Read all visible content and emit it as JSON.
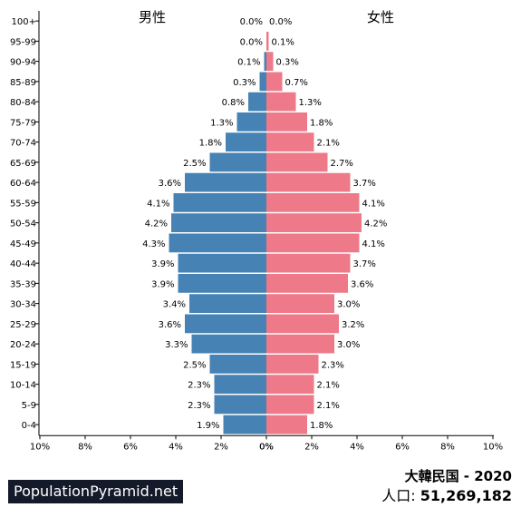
{
  "chart_data": {
    "type": "bar",
    "orientation": "horizontal-population-pyramid",
    "title": "大韓民国 - 2020",
    "sex_labels": {
      "male": "男性",
      "female": "女性"
    },
    "age_groups": [
      "100+",
      "95-99",
      "90-94",
      "85-89",
      "80-84",
      "75-79",
      "70-74",
      "65-69",
      "60-64",
      "55-59",
      "50-54",
      "45-49",
      "40-44",
      "35-39",
      "30-34",
      "25-29",
      "20-24",
      "15-19",
      "10-14",
      "5-9",
      "0-4"
    ],
    "series": [
      {
        "name": "男性",
        "values": [
          0.0,
          0.0,
          0.1,
          0.3,
          0.8,
          1.3,
          1.8,
          2.5,
          3.6,
          4.1,
          4.2,
          4.3,
          3.9,
          3.9,
          3.4,
          3.6,
          3.3,
          2.5,
          2.3,
          2.3,
          1.9
        ]
      },
      {
        "name": "女性",
        "values": [
          0.0,
          0.1,
          0.3,
          0.7,
          1.3,
          1.8,
          2.1,
          2.7,
          3.7,
          4.1,
          4.2,
          4.1,
          3.7,
          3.6,
          3.0,
          3.2,
          3.0,
          2.3,
          2.1,
          2.1,
          1.8
        ]
      }
    ],
    "value_labels": {
      "male": [
        "0.0%",
        "0.0%",
        "0.1%",
        "0.3%",
        "0.8%",
        "1.3%",
        "1.8%",
        "2.5%",
        "3.6%",
        "4.1%",
        "4.2%",
        "4.3%",
        "3.9%",
        "3.9%",
        "3.4%",
        "3.6%",
        "3.3%",
        "2.5%",
        "2.3%",
        "2.3%",
        "1.9%"
      ],
      "female": [
        "0.0%",
        "0.1%",
        "0.3%",
        "0.7%",
        "1.3%",
        "1.8%",
        "2.1%",
        "2.7%",
        "3.7%",
        "4.1%",
        "4.2%",
        "4.1%",
        "3.7%",
        "3.6%",
        "3.0%",
        "3.2%",
        "3.0%",
        "2.3%",
        "2.1%",
        "2.1%",
        "1.8%"
      ]
    },
    "x_ticks": [
      "10%",
      "8%",
      "6%",
      "4%",
      "2%",
      "0%",
      "0%",
      "2%",
      "4%",
      "6%",
      "8%",
      "10%"
    ],
    "xlim": [
      -10,
      10
    ],
    "colors": {
      "male": "#4682b4",
      "female": "#ee7989"
    },
    "grid": false
  },
  "footer": {
    "brand": "PopulationPyramid.net",
    "title": "大韓民国 - 2020",
    "population_label": "人口:",
    "population_value": "51,269,182"
  }
}
